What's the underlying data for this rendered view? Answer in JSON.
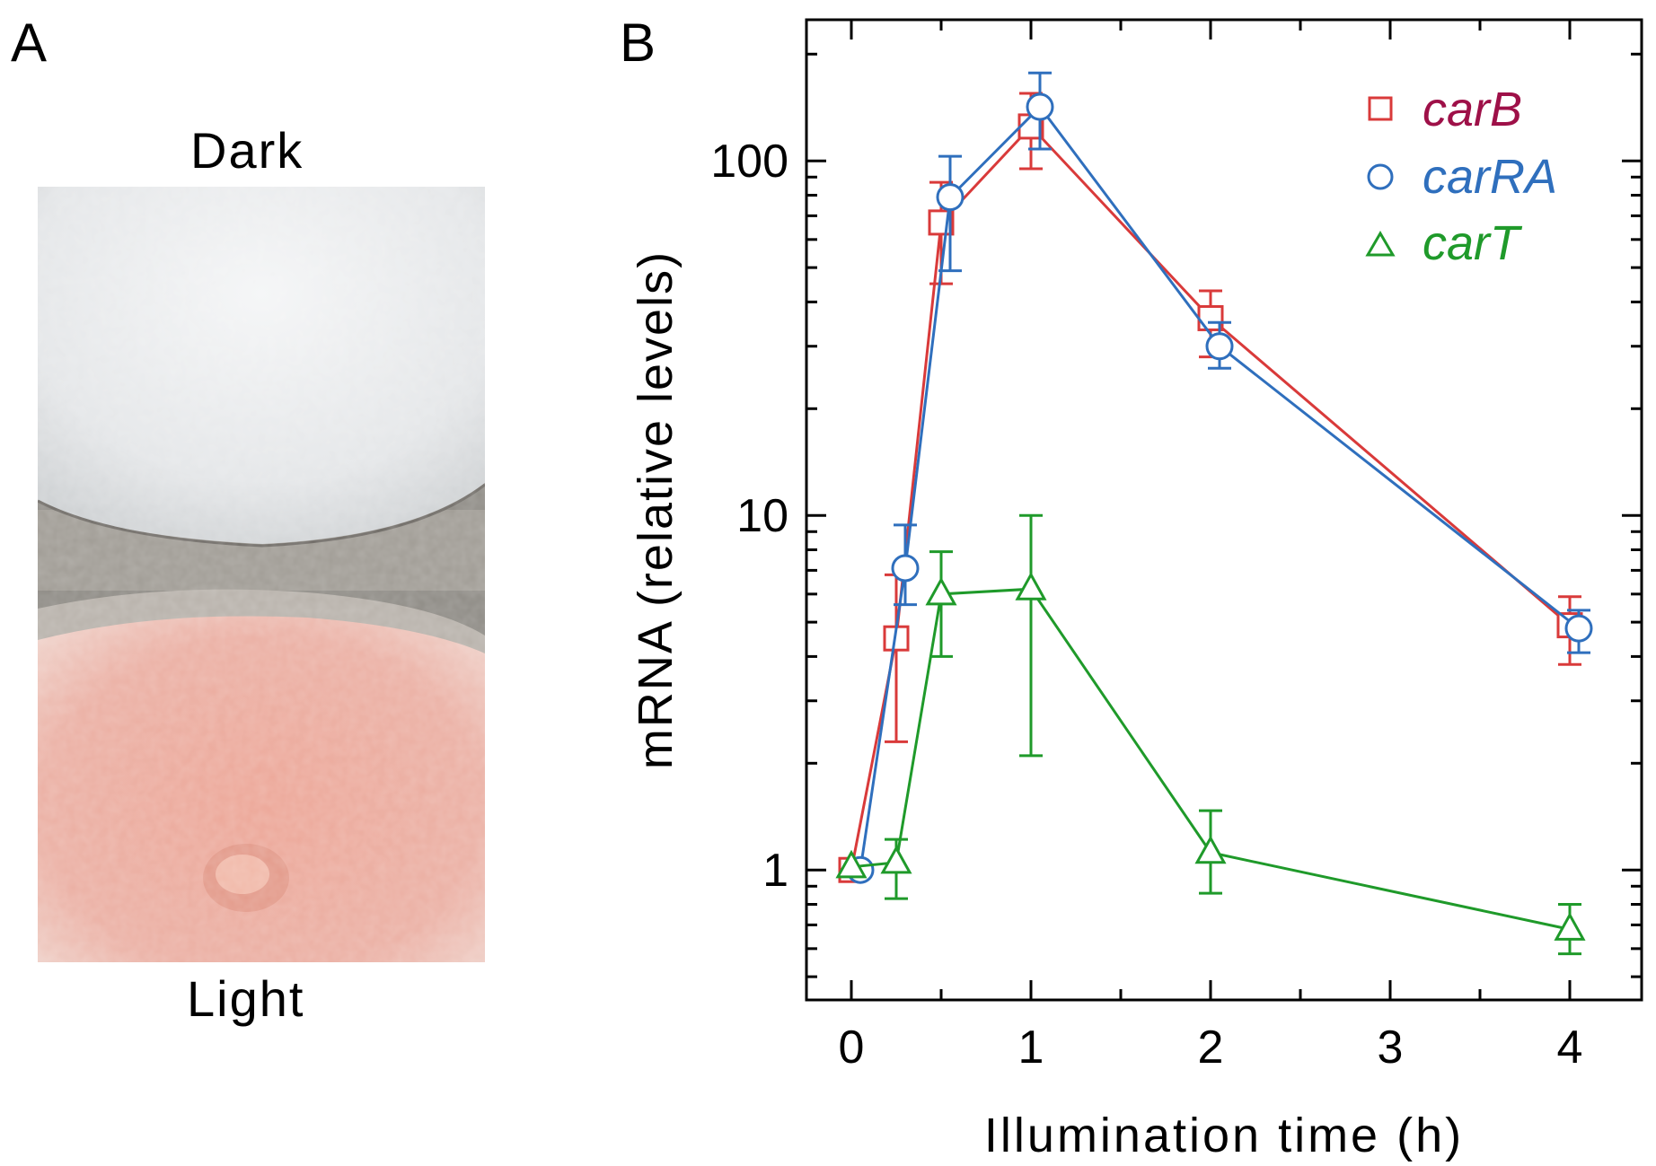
{
  "panel_a": {
    "letter": "A",
    "top_label": "Dark",
    "bottom_label": "Light"
  },
  "panel_b": {
    "letter": "B"
  },
  "colors": {
    "carB": "#d93a3a",
    "carB_label": "#9e1048",
    "carRA": "#2f6fbd",
    "carT": "#1f9a2a"
  },
  "chart_data": {
    "type": "line",
    "xlabel": "Illumination time (h)",
    "ylabel": "mRNA (relative levels)",
    "xscale": "linear",
    "yscale": "log",
    "xlim": [
      -0.25,
      4.4
    ],
    "ylim": [
      0.43,
      250
    ],
    "xticks": [
      0,
      1,
      2,
      3,
      4
    ],
    "xtick_labels": [
      "0",
      "1",
      "2",
      "3",
      "4"
    ],
    "yticks": [
      1,
      10,
      100
    ],
    "ytick_labels": [
      "1",
      "10",
      "100"
    ],
    "legend_position": "top-right",
    "series": [
      {
        "name": "carB",
        "marker": "square",
        "points": [
          {
            "x": 0,
            "y": 1.0
          },
          {
            "x": 0.25,
            "y": 4.5,
            "lo": 2.3,
            "hi": 6.8
          },
          {
            "x": 0.5,
            "y": 67,
            "lo": 45,
            "hi": 87
          },
          {
            "x": 1,
            "y": 125,
            "lo": 95,
            "hi": 155
          },
          {
            "x": 2,
            "y": 36,
            "lo": 28,
            "hi": 43
          },
          {
            "x": 4,
            "y": 4.9,
            "lo": 3.8,
            "hi": 5.9
          }
        ]
      },
      {
        "name": "carRA",
        "marker": "circle",
        "points": [
          {
            "x": 0.05,
            "y": 1.0
          },
          {
            "x": 0.3,
            "y": 7.1,
            "lo": 5.6,
            "hi": 9.4
          },
          {
            "x": 0.55,
            "y": 79,
            "lo": 49,
            "hi": 103
          },
          {
            "x": 1.05,
            "y": 142,
            "lo": 108,
            "hi": 177
          },
          {
            "x": 2.05,
            "y": 30,
            "lo": 26,
            "hi": 35
          },
          {
            "x": 4.05,
            "y": 4.8,
            "lo": 4.1,
            "hi": 5.4
          }
        ]
      },
      {
        "name": "carT",
        "marker": "triangle",
        "points": [
          {
            "x": 0,
            "y": 1.02
          },
          {
            "x": 0.25,
            "y": 1.05,
            "lo": 0.83,
            "hi": 1.22
          },
          {
            "x": 0.5,
            "y": 6.0,
            "lo": 4.0,
            "hi": 7.9
          },
          {
            "x": 1,
            "y": 6.2,
            "lo": 2.1,
            "hi": 10.0
          },
          {
            "x": 2,
            "y": 1.12,
            "lo": 0.86,
            "hi": 1.47
          },
          {
            "x": 4,
            "y": 0.68,
            "lo": 0.58,
            "hi": 0.8
          }
        ]
      }
    ]
  }
}
